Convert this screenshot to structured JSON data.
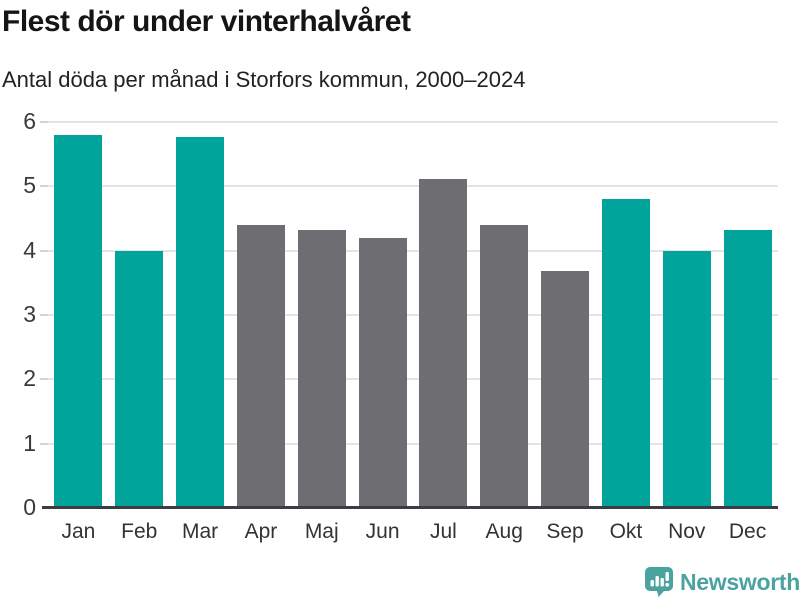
{
  "header": {
    "title": "Flest dör under vinterhalvåret",
    "subtitle": "Antal döda per månad i Storfors kommun, 2000–2024"
  },
  "chart_data": {
    "type": "bar",
    "categories": [
      "Jan",
      "Feb",
      "Mar",
      "Apr",
      "Maj",
      "Jun",
      "Jul",
      "Aug",
      "Sep",
      "Okt",
      "Nov",
      "Dec"
    ],
    "values": [
      5.8,
      4.0,
      5.76,
      4.4,
      4.32,
      4.2,
      5.12,
      4.4,
      3.68,
      4.8,
      4.0,
      4.32
    ],
    "bar_color_keys": [
      "teal",
      "teal",
      "teal",
      "gray",
      "gray",
      "gray",
      "gray",
      "gray",
      "gray",
      "teal",
      "teal",
      "teal"
    ],
    "title": "Flest dör under vinterhalvåret",
    "subtitle": "Antal döda per månad i Storfors kommun, 2000–2024",
    "xlabel": "",
    "ylabel": "",
    "ylim": [
      0,
      6
    ],
    "yticks": [
      0,
      1,
      2,
      3,
      4,
      5,
      6
    ],
    "grid": true,
    "legend": false,
    "colors": {
      "teal": "#00A49B",
      "gray": "#6E6E72",
      "gridline": "#E4E4E4",
      "tick": "#D4D4D4",
      "axis_line": "#3C3C42",
      "axis_label": "#3A3A3A"
    }
  },
  "footer": {
    "brand": "Newsworthy",
    "brand_color": "#4BA3A0",
    "logo_icon": "bar-chart-speech-bubble-icon"
  }
}
